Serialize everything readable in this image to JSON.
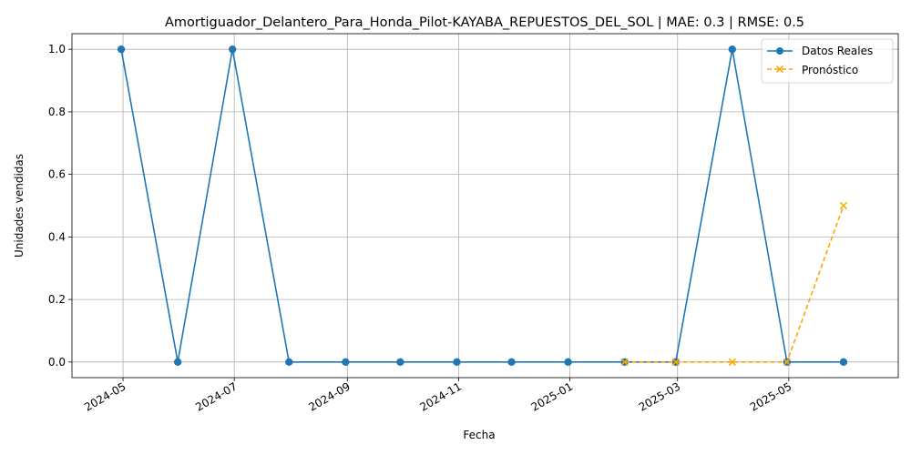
{
  "chart_data": {
    "type": "line",
    "title": "Amortiguador_Delantero_Para_Honda_Pilot-KAYABA_REPUESTOS_DEL_SOL | MAE: 0.3 | RMSE: 0.5",
    "xlabel": "Fecha",
    "ylabel": "Unidades vendidas",
    "xlim": [
      "2024-04-03",
      "2025-06-30"
    ],
    "ylim": [
      -0.05,
      1.05
    ],
    "x_ticks": [
      "2024-05",
      "2024-07",
      "2024-09",
      "2024-11",
      "2025-01",
      "2025-03",
      "2025-05"
    ],
    "y_ticks": [
      "0.0",
      "0.2",
      "0.4",
      "0.6",
      "0.8",
      "1.0"
    ],
    "grid": true,
    "legend_position": "top-right",
    "series": [
      {
        "name": "Datos Reales",
        "color": "#1f77b4",
        "marker": "circle",
        "line_style": "solid",
        "x": [
          "2024-04-30",
          "2024-05-31",
          "2024-06-30",
          "2024-07-31",
          "2024-08-31",
          "2024-09-30",
          "2024-10-31",
          "2024-11-30",
          "2024-12-31",
          "2025-01-31",
          "2025-02-28",
          "2025-03-31",
          "2025-04-30",
          "2025-05-31"
        ],
        "values": [
          1,
          0,
          1,
          0,
          0,
          0,
          0,
          0,
          0,
          0,
          0,
          1,
          0,
          0
        ]
      },
      {
        "name": "Pronóstico",
        "color": "#ffa500",
        "marker": "x",
        "line_style": "dashed",
        "x": [
          "2025-01-31",
          "2025-02-28",
          "2025-03-31",
          "2025-04-30",
          "2025-05-31"
        ],
        "values": [
          0,
          0,
          0,
          0,
          0.5
        ]
      }
    ]
  }
}
